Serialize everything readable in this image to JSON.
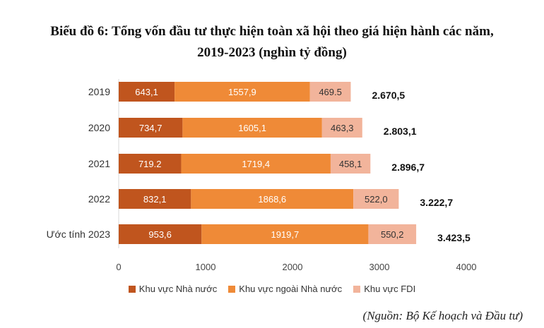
{
  "title_line1": "Biểu đồ 6: Tổng vốn đầu tư thực hiện toàn xã hội theo giá hiện hành các năm,",
  "title_line2": "2019-2023 (nghìn tỷ đồng)",
  "source": "(Nguồn: Bộ Kế hoạch và Đầu tư)",
  "chart_data": {
    "type": "bar",
    "orientation": "horizontal",
    "stacked": true,
    "categories": [
      "2019",
      "2020",
      "2021",
      "2022",
      "Ước tính 2023"
    ],
    "series": [
      {
        "name": "Khu vực Nhà nước",
        "color": "#c0551e",
        "values": [
          643.1,
          734.7,
          719.2,
          832.1,
          953.6
        ],
        "labels": [
          "643,1",
          "734,7",
          "719.2",
          "832,1",
          "953,6"
        ]
      },
      {
        "name": "Khu vực ngoài Nhà nước",
        "color": "#ef8a37",
        "values": [
          1557.9,
          1605.1,
          1719.4,
          1868.6,
          1919.7
        ],
        "labels": [
          "1557,9",
          "1605,1",
          "1719,4",
          "1868,6",
          "1919,7"
        ]
      },
      {
        "name": "Khu vực FDI",
        "color": "#f2b49b",
        "values": [
          469.5,
          463.3,
          458.1,
          522.0,
          550.2
        ],
        "labels": [
          "469.5",
          "463,3",
          "458,1",
          "522,0",
          "550,2"
        ]
      }
    ],
    "totals": [
      "2.670,5",
      "2.803,1",
      "2.896,7",
      "3.222,7",
      "3.423,5"
    ],
    "xlim": [
      0,
      4000
    ],
    "xticks": [
      "0",
      "1000",
      "2000",
      "3000",
      "4000"
    ],
    "legend_position": "bottom",
    "grid": false
  }
}
